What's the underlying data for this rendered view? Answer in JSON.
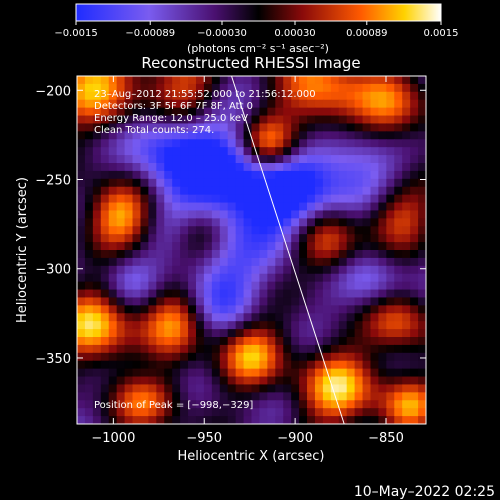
{
  "chart_data": {
    "type": "heatmap",
    "title": "Reconstructed RHESSI Image",
    "xlabel": "Heliocentric X (arcsec)",
    "ylabel": "Heliocentric Y (arcsec)",
    "xlim": [
      -1020,
      -828
    ],
    "ylim": [
      -387,
      -192
    ],
    "x_ticks": [
      -1000,
      -950,
      -900,
      -850
    ],
    "y_ticks": [
      -200,
      -250,
      -300,
      -350
    ],
    "x_tick_labels": [
      "−1000",
      "−950",
      "−900",
      "−850"
    ],
    "y_tick_labels": [
      "−200",
      "−250",
      "−300",
      "−350"
    ],
    "colorbar": {
      "min": -0.0015,
      "max": 0.0015,
      "ticks": [
        -0.0015,
        -0.00089,
        -0.0003,
        0.0003,
        0.00089,
        0.0015
      ],
      "tick_labels": [
        "−0.0015",
        "−0.00089",
        "−0.00030",
        "0.00030",
        "0.00089",
        "0.0015"
      ],
      "unit_label": "(photons cm⁻² s⁻¹ asec⁻²)"
    },
    "annotations": {
      "time": "23–Aug–2012 21:55:52.000 to 21:56:12.000",
      "detectors": "Detectors: 3F 5F 6F 7F 8F, Att 0",
      "energy": "Energy Range: 12.0 – 25.0 keV",
      "clean": "Clean     Total counts: 274.",
      "peak": "Position of Peak = [−998,−329]"
    },
    "limb_line": {
      "x": [
        -935,
        -873
      ],
      "y": [
        -192,
        -387
      ]
    },
    "peak": {
      "x": -998,
      "y": -329
    }
  },
  "footer": {
    "date": "10–May–2022 02:25"
  },
  "colors": {
    "background": "#000000",
    "foreground": "#ffffff"
  }
}
